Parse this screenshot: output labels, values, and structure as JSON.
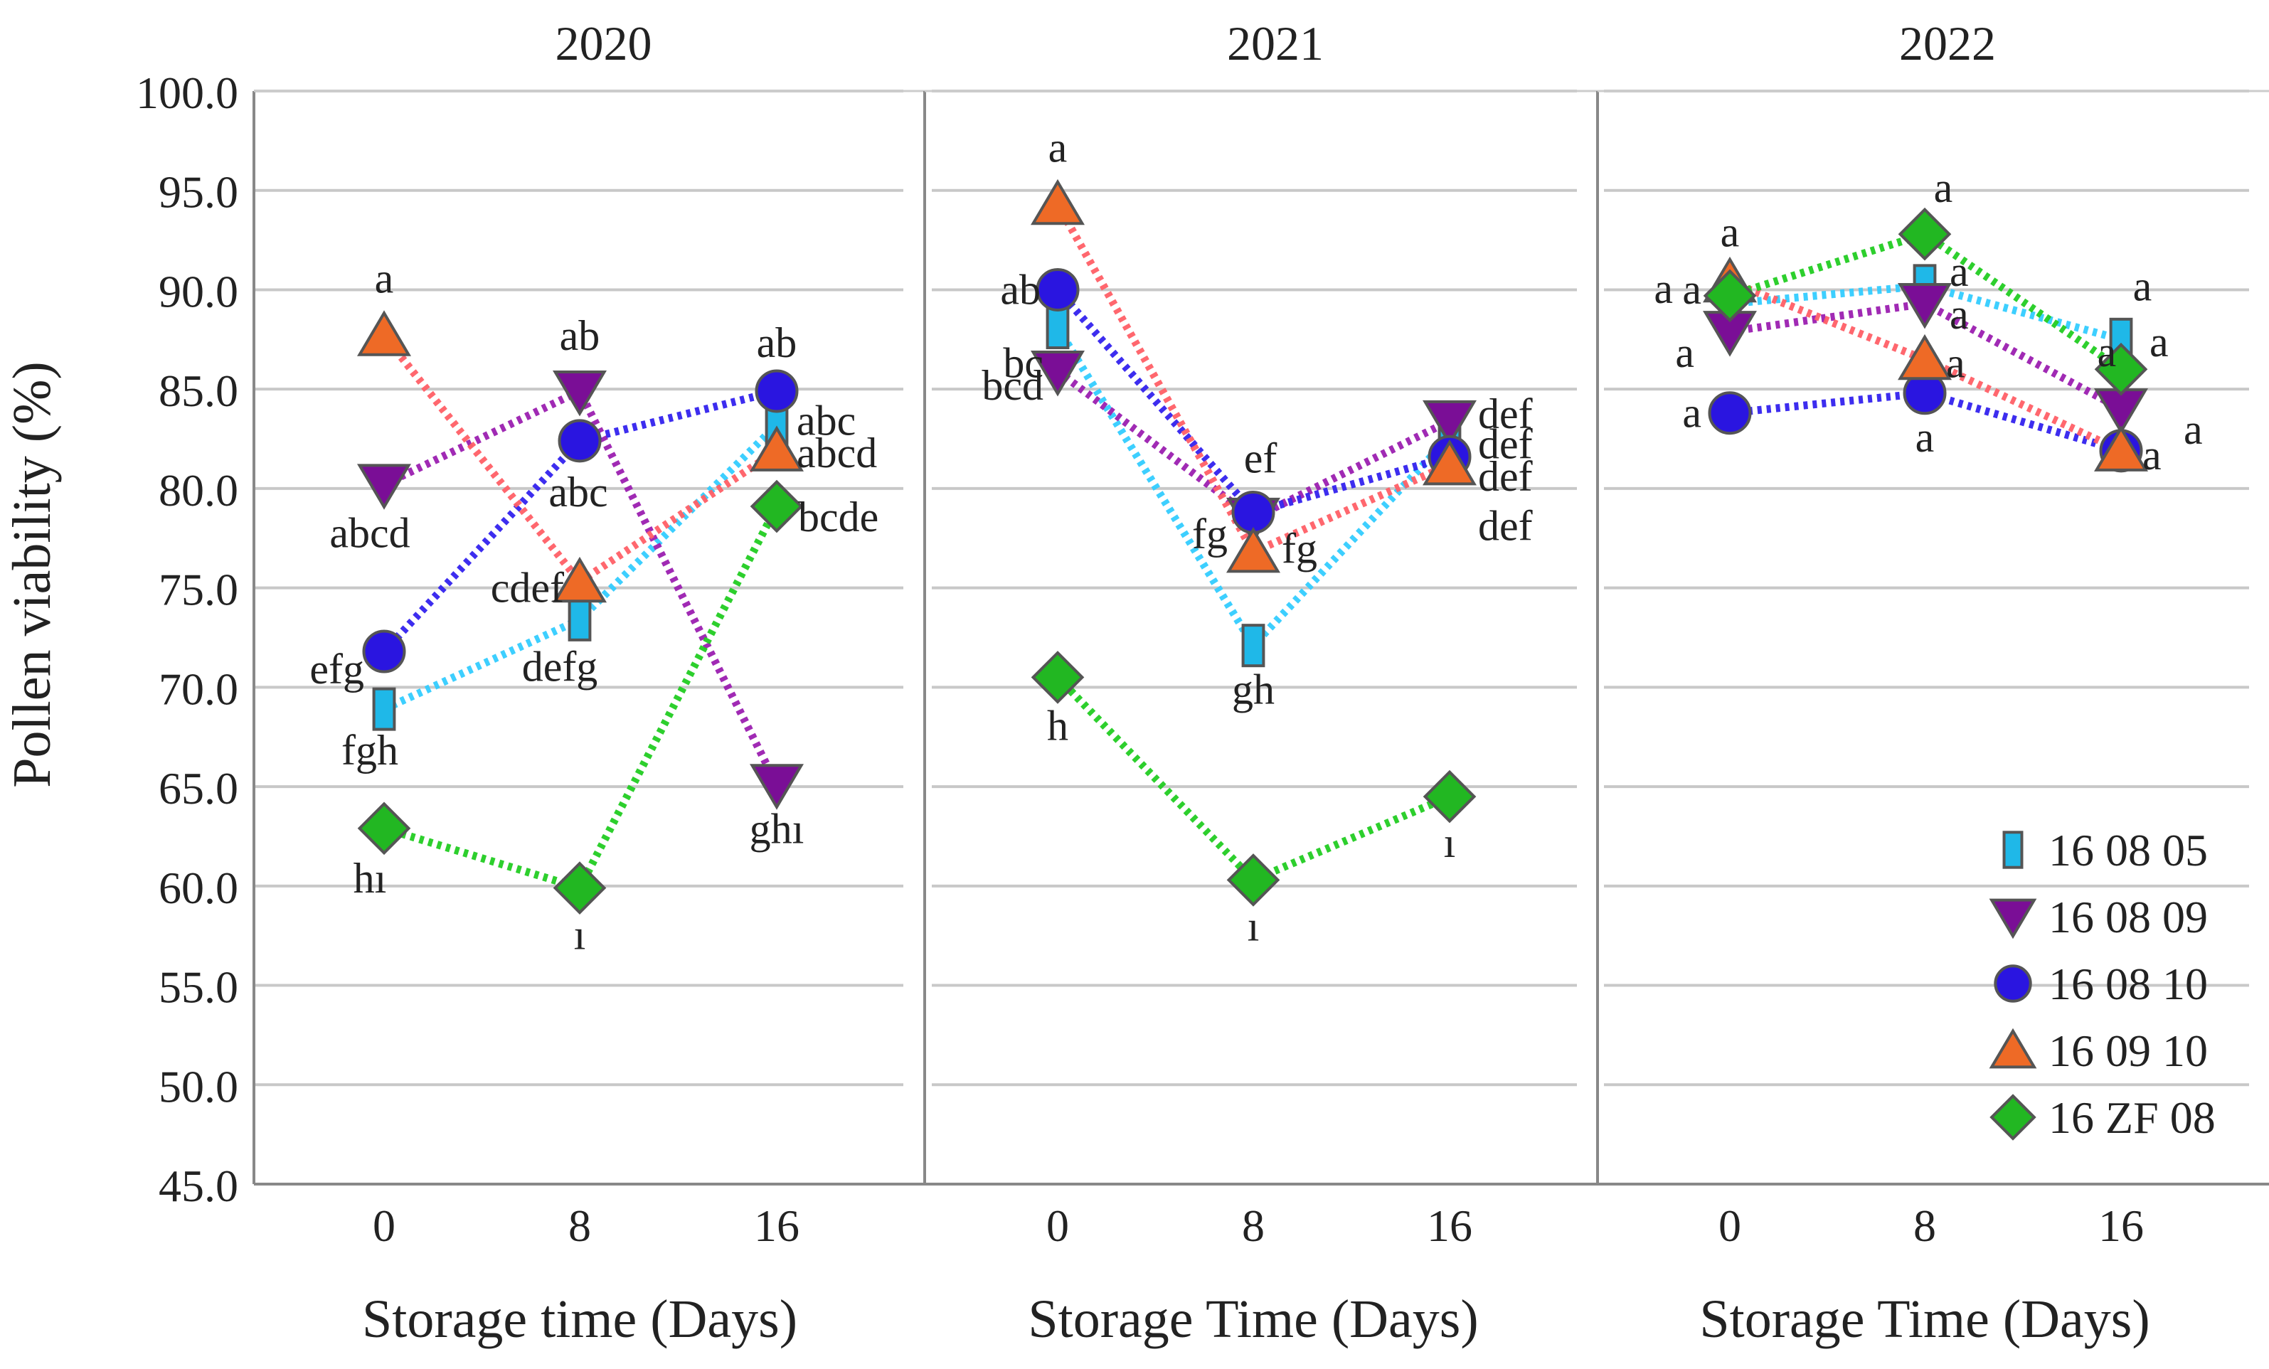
{
  "chart_data": {
    "type": "line",
    "ylabel": "Pollen viability (%)",
    "ylim": [
      45.0,
      100.0
    ],
    "yticks": [
      "100.0",
      "95.0",
      "90.0",
      "85.0",
      "80.0",
      "75.0",
      "70.0",
      "65.0",
      "60.0",
      "55.0",
      "50.0",
      "45.0"
    ],
    "categories": [
      "0",
      "8",
      "16"
    ],
    "legend": [
      {
        "name": "16 08 05",
        "marker": "square",
        "color": "#1fb8e8",
        "line": "#33ccff"
      },
      {
        "name": "16 08 09",
        "marker": "triangle-down",
        "color": "#7a0e96",
        "line": "#9b1fb0"
      },
      {
        "name": "16 08 10",
        "marker": "circle",
        "color": "#2a15e0",
        "line": "#3322ee"
      },
      {
        "name": "16 09 10",
        "marker": "triangle-up",
        "color": "#ee6a26",
        "line": "#ff5f66"
      },
      {
        "name": "16 ZF 08",
        "marker": "diamond",
        "color": "#22b722",
        "line": "#22cc22"
      }
    ],
    "panels": [
      {
        "title": "2020",
        "xlabel": "Storage time (Days)",
        "series": [
          {
            "name": "16 08 05",
            "values": [
              68.9,
              73.4,
              83.2
            ],
            "letters": [
              "fgh",
              "defg",
              "abc"
            ]
          },
          {
            "name": "16 08 09",
            "values": [
              80.2,
              84.9,
              65.1
            ],
            "letters": [
              "abcd",
              "ab",
              "ghı"
            ]
          },
          {
            "name": "16 08 10",
            "values": [
              71.8,
              82.4,
              84.9
            ],
            "letters": [
              "efg",
              "abc",
              "ab"
            ]
          },
          {
            "name": "16 09 10",
            "values": [
              87.7,
              75.3,
              81.9
            ],
            "letters": [
              "a",
              "cdef",
              "abcd"
            ]
          },
          {
            "name": "16 ZF 08",
            "values": [
              62.9,
              59.9,
              79.1
            ],
            "letters": [
              "hı",
              "ı",
              "bcde"
            ]
          }
        ]
      },
      {
        "title": "2021",
        "xlabel": "Storage Time (Days)",
        "series": [
          {
            "name": "16 08 05",
            "values": [
              88.1,
              72.1,
              82.6
            ],
            "letters": [
              "bc",
              "gh",
              "def"
            ]
          },
          {
            "name": "16 08 09",
            "values": [
              85.9,
              78.5,
              83.4
            ],
            "letters": [
              "bcd",
              "fg",
              "def"
            ]
          },
          {
            "name": "16 08 10",
            "values": [
              90.0,
              78.8,
              81.6
            ],
            "letters": [
              "ab",
              "ef",
              "def"
            ]
          },
          {
            "name": "16 09 10",
            "values": [
              94.3,
              76.8,
              81.2
            ],
            "letters": [
              "a",
              "fg",
              "def"
            ]
          },
          {
            "name": "16 ZF 08",
            "values": [
              70.5,
              60.3,
              64.5
            ],
            "letters": [
              "h",
              "ı",
              "ı"
            ]
          }
        ]
      },
      {
        "title": "2022",
        "xlabel": "Storage Time (Days)",
        "series": [
          {
            "name": "16 08 05",
            "values": [
              89.3,
              90.2,
              87.5
            ],
            "letters": [
              "a",
              "a",
              "a"
            ]
          },
          {
            "name": "16 08 09",
            "values": [
              87.9,
              89.3,
              84.0
            ],
            "letters": [
              "a",
              "a",
              "a"
            ]
          },
          {
            "name": "16 08 10",
            "values": [
              83.8,
              84.8,
              81.9
            ],
            "letters": [
              "a",
              "a",
              "a"
            ]
          },
          {
            "name": "16 09 10",
            "values": [
              90.4,
              86.5,
              81.9
            ],
            "letters": [
              "a",
              "a",
              "a"
            ]
          },
          {
            "name": "16 ZF 08",
            "values": [
              89.7,
              92.8,
              86.0
            ],
            "letters": [
              "a",
              "a",
              "a"
            ]
          }
        ]
      }
    ]
  }
}
